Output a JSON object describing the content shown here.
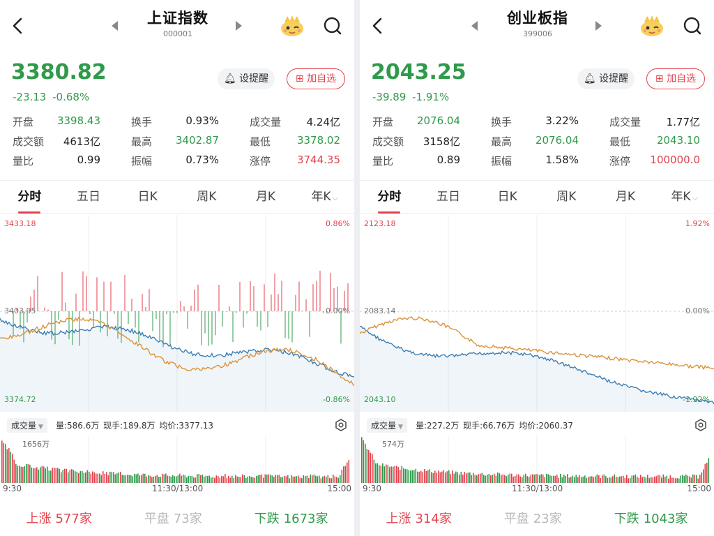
{
  "panels": [
    {
      "title": "上证指数",
      "code": "000001",
      "price": "3380.82",
      "change": "-23.13  -0.68%",
      "alert_label": "设提醒",
      "fav_label": "加自选",
      "stats": [
        [
          {
            "k": "开盘",
            "v": "3398.43",
            "c": "g"
          },
          {
            "k": "换手",
            "v": "0.93%",
            "c": "d"
          },
          {
            "k": "成交量",
            "v": "4.24亿",
            "c": "d"
          }
        ],
        [
          {
            "k": "成交额",
            "v": "4613亿",
            "c": "d"
          },
          {
            "k": "最高",
            "v": "3402.87",
            "c": "g"
          },
          {
            "k": "最低",
            "v": "3378.02",
            "c": "g"
          }
        ],
        [
          {
            "k": "量比",
            "v": "0.99",
            "c": "d"
          },
          {
            "k": "振幅",
            "v": "0.73%",
            "c": "d"
          },
          {
            "k": "涨停",
            "v": "3744.35",
            "c": "r"
          }
        ]
      ],
      "tabs": [
        "分时",
        "五日",
        "日K",
        "周K",
        "月K",
        "年K"
      ],
      "axis": {
        "top_left": "3433.18",
        "top_right": "0.86%",
        "mid_left": "3403.95",
        "mid_right": "0.00%",
        "bot_left": "3374.72",
        "bot_right": "-0.86%"
      },
      "vol_selector": "成交量",
      "vol_info": "量:586.6万  现手:189.8万  均价:3377.13",
      "vol_max": "1656万",
      "times": [
        "9:30",
        "11:30/13:00",
        "15:00"
      ],
      "breadth": {
        "up_label": "上涨",
        "up_val": "577家",
        "flat_label": "平盘",
        "flat_val": "73家",
        "down_label": "下跌",
        "down_val": "1673家"
      }
    },
    {
      "title": "创业板指",
      "code": "399006",
      "price": "2043.25",
      "change": "-39.89  -1.91%",
      "alert_label": "设提醒",
      "fav_label": "加自选",
      "stats": [
        [
          {
            "k": "开盘",
            "v": "2076.04",
            "c": "g"
          },
          {
            "k": "换手",
            "v": "3.22%",
            "c": "d"
          },
          {
            "k": "成交量",
            "v": "1.77亿",
            "c": "d"
          }
        ],
        [
          {
            "k": "成交额",
            "v": "3158亿",
            "c": "d"
          },
          {
            "k": "最高",
            "v": "2076.04",
            "c": "g"
          },
          {
            "k": "最低",
            "v": "2043.10",
            "c": "g"
          }
        ],
        [
          {
            "k": "量比",
            "v": "0.89",
            "c": "d"
          },
          {
            "k": "振幅",
            "v": "1.58%",
            "c": "d"
          },
          {
            "k": "涨停",
            "v": "100000.0",
            "c": "r"
          }
        ]
      ],
      "tabs": [
        "分时",
        "五日",
        "日K",
        "周K",
        "月K",
        "年K"
      ],
      "axis": {
        "top_left": "2123.18",
        "top_right": "1.92%",
        "mid_left": "2083.14",
        "mid_right": "0.00%",
        "bot_left": "2043.10",
        "bot_right": "-1.92%"
      },
      "vol_selector": "成交量",
      "vol_info": "量:227.2万  现手:66.76万  均价:2060.37",
      "vol_max": "574万",
      "times": [
        "9:30",
        "11:30/13:00",
        "15:00"
      ],
      "breadth": {
        "up_label": "上涨",
        "up_val": "314家",
        "flat_label": "平盘",
        "flat_val": "23家",
        "down_label": "下跌",
        "down_val": "1043家"
      }
    }
  ],
  "colors": {
    "up": "#e3424c",
    "down": "#2f9a4a",
    "price_line": "#3b7fb5",
    "avg_line": "#d9933a"
  }
}
